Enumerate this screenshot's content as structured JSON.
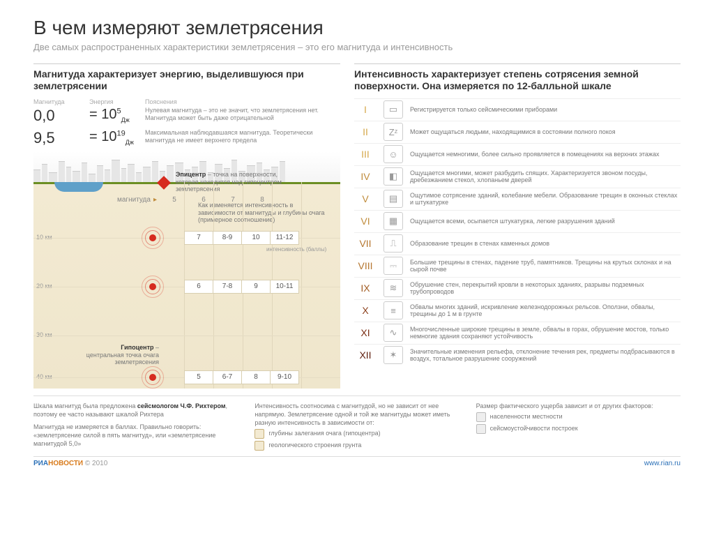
{
  "title": "В чем измеряют землетрясения",
  "subtitle": "Две самых распространенных характеристики землетрясения – это его магнитуда и интенсивность",
  "left": {
    "heading": "Магнитуда характеризует энергию, выделившуюся при землетрясении",
    "col_headers": [
      "Магнитуда",
      "Энергия",
      "Пояснения"
    ],
    "rows": [
      {
        "mag": "0,0",
        "energy_base": "= 10",
        "energy_exp": "5",
        "energy_unit": "Дж",
        "text": "Нулевая магнитуда – это не значит, что землетрясения нет. Магнитуда может быть даже отрицательной"
      },
      {
        "mag": "9,5",
        "energy_base": "= 10",
        "energy_exp": "19",
        "energy_unit": "Дж",
        "text": "Максимальная наблюдавшаяся магнитуда. Теоретически магнитуда не имеет верхнего предела"
      }
    ],
    "epi_label_bold": "Эпицентр",
    "epi_label": " – точка на поверхности, которая находится над гипоцентром землетрясения",
    "table_title": "Как изменяется интенсивность в зависимости от магнитуды и глубины очага (примерное соотношение)",
    "mag_word": "магнитуда",
    "mag_cols": [
      "5",
      "6",
      "7",
      "8"
    ],
    "depths": [
      "10 км",
      "20 км",
      "30 км",
      "40 км"
    ],
    "row10": [
      "7",
      "8-9",
      "10",
      "11-12"
    ],
    "row20": [
      "6",
      "7-8",
      "9",
      "10-11"
    ],
    "row40": [
      "5",
      "6-7",
      "8",
      "9-10"
    ],
    "int_sub": "интенсивность (баллы)",
    "hypo_bold": "Гипоцентр",
    "hypo_text": " – центральная точка очага землетрясения"
  },
  "right": {
    "heading": "Интенсивность характеризует степень сотрясения земной поверхности. Она измеряется по 12-балльной шкале",
    "items": [
      {
        "r": "I",
        "c": "#d6a84c",
        "g": "▭",
        "t": "Регистрируется только сейсмическими приборами"
      },
      {
        "r": "II",
        "c": "#d6a84c",
        "g": "Zᶻ",
        "t": "Может ощущаться людьми, находящимися в состоянии полного покоя"
      },
      {
        "r": "III",
        "c": "#d6a84c",
        "g": "☺",
        "t": "Ощущается немногими, более сильно проявляется в помещениях на верхних этажах"
      },
      {
        "r": "IV",
        "c": "#c08c3c",
        "g": "◧",
        "t": "Ощущается многими, может разбудить спящих. Характеризуется звоном посуды, дребезжанием стекол, хлопаньем дверей"
      },
      {
        "r": "V",
        "c": "#c08c3c",
        "g": "▤",
        "t": "Ощутимое сотрясение зданий, колебание мебели. Образование трещин в оконных стеклах и штукатурке"
      },
      {
        "r": "VI",
        "c": "#c08c3c",
        "g": "▦",
        "t": "Ощущается всеми, осыпается штукатурка, легкие разрушения зданий"
      },
      {
        "r": "VII",
        "c": "#b5762f",
        "g": "⎍",
        "t": "Образование трещин в стенах каменных домов"
      },
      {
        "r": "VIII",
        "c": "#b5762f",
        "g": "⎓",
        "t": "Большие трещины в стенах, падение труб, памятников. Трещины на крутых склонах и на сырой почве"
      },
      {
        "r": "IX",
        "c": "#a25d24",
        "g": "≋",
        "t": "Обрушение стен, перекрытий кровли в некоторых зданиях, разрывы подземных трубопроводов"
      },
      {
        "r": "X",
        "c": "#8b3f1b",
        "g": "≡",
        "t": "Обвалы многих зданий, искривление железнодорожных рельсов. Оползни, обвалы, трещины до 1 м в грунте"
      },
      {
        "r": "XI",
        "c": "#7a2e14",
        "g": "∿",
        "t": "Многочисленные широкие трещины в земле, обвалы в горах, обрушение мостов, только немногие здания сохраняют устойчивость"
      },
      {
        "r": "XII",
        "c": "#5e1d0d",
        "g": "✶",
        "t": "Значительные изменения рельефа, отклонение течения рек, предметы подбрасываются в воздух, тотальное разрушение сооружений"
      }
    ]
  },
  "footer": {
    "c1a": "Шкала магнитуд была предложена ",
    "c1b": "сейсмологом Ч.Ф. Рихтером",
    "c1c": ", поэтому ее часто называют шкалой Рихтера",
    "c1d": "Магнитуда не измеряется в баллах. Правильно говорить: «землетрясение силой в пять магнитуд», или «землетрясение магнитудой 5,0»",
    "c2a": "Интенсивность соотносима с магнитудой, но не зависит от нее напрямую. Землетрясение одной и той же магнитуды может иметь разную интенсивность в зависимости от:",
    "c2i": [
      "глубины залегания очага (гипоцентра)",
      "геологического строения грунта"
    ],
    "c3a": "Размер фактического ущерба зависит и от других факторов:",
    "c3i": [
      "населенности местности",
      "сейсмоустойчивости построек"
    ]
  },
  "very_footer": {
    "logo_a": "РИА",
    "logo_b": "НОВОСТИ",
    "copy": "© 2010",
    "url": "www.rian.ru"
  }
}
